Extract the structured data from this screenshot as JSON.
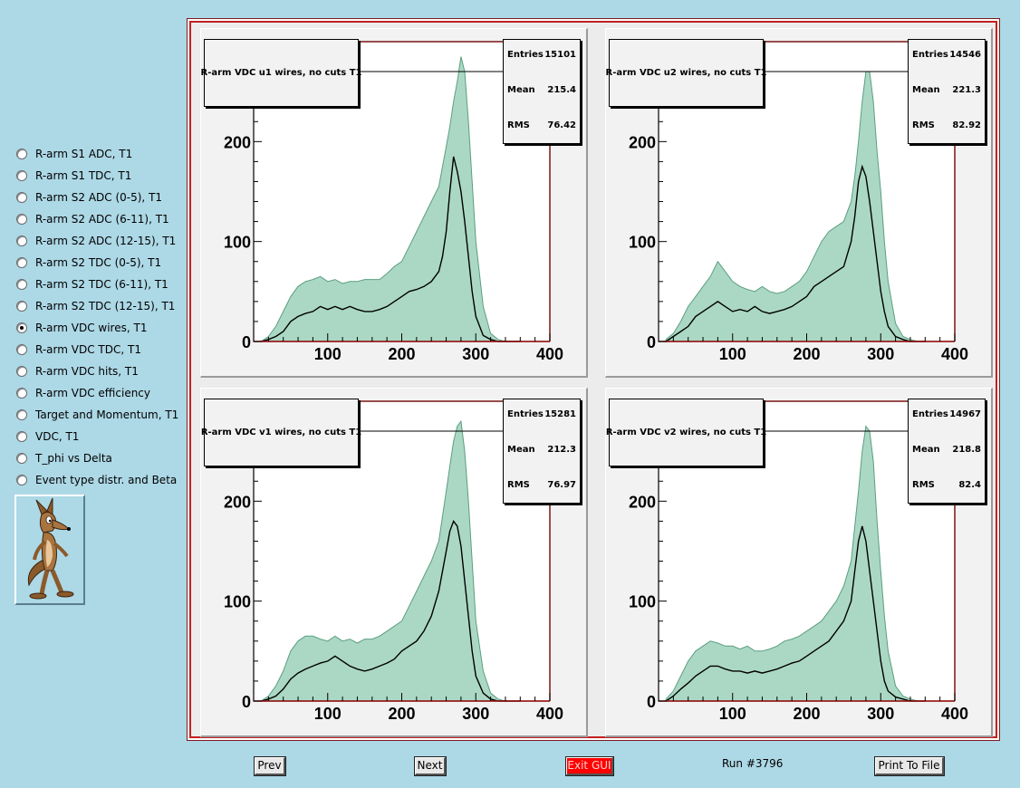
{
  "sidebar": {
    "options": [
      {
        "label": "R-arm S1 ADC, T1",
        "checked": false
      },
      {
        "label": "R-arm S1 TDC, T1",
        "checked": false
      },
      {
        "label": "R-arm S2 ADC (0-5), T1",
        "checked": false
      },
      {
        "label": "R-arm S2 ADC (6-11), T1",
        "checked": false
      },
      {
        "label": "R-arm S2 ADC (12-15), T1",
        "checked": false
      },
      {
        "label": "R-arm S2 TDC (0-5), T1",
        "checked": false
      },
      {
        "label": "R-arm S2 TDC (6-11), T1",
        "checked": false
      },
      {
        "label": "R-arm S2 TDC (12-15), T1",
        "checked": false
      },
      {
        "label": "R-arm VDC wires, T1",
        "checked": true
      },
      {
        "label": "R-arm VDC TDC, T1",
        "checked": false
      },
      {
        "label": "R-arm VDC hits, T1",
        "checked": false
      },
      {
        "label": "R-arm VDC efficiency",
        "checked": false
      },
      {
        "label": "Target and Momentum, T1",
        "checked": false
      },
      {
        "label": "VDC, T1",
        "checked": false
      },
      {
        "label": "T_phi vs Delta",
        "checked": false
      },
      {
        "label": "Event type distr. and Beta",
        "checked": false
      }
    ],
    "logo_icon": "cartoon-coyote-icon"
  },
  "stats_labels": {
    "entries": "Entries",
    "mean": "Mean",
    "rms": "RMS"
  },
  "colors": {
    "fill": "#8fcbb0",
    "outline": "#5a9e80",
    "line": "#000000",
    "frame": "#7a1515"
  },
  "chart_data": [
    {
      "type": "line",
      "title": "R-arm VDC u1 wires, no cuts T1",
      "stats": {
        "entries": "15101",
        "mean": "215.4",
        "rms": "76.42"
      },
      "xlim": [
        0,
        400
      ],
      "ylim": [
        0,
        300
      ],
      "xticks": [
        "100",
        "200",
        "300",
        "400"
      ],
      "yticks": [
        "0",
        "100",
        "200"
      ],
      "x": [
        10,
        20,
        30,
        40,
        50,
        60,
        70,
        80,
        90,
        100,
        110,
        120,
        130,
        140,
        150,
        160,
        170,
        180,
        190,
        200,
        210,
        220,
        230,
        240,
        250,
        255,
        260,
        265,
        270,
        275,
        280,
        285,
        290,
        295,
        300,
        310,
        320,
        330,
        340,
        350,
        360
      ],
      "series": [
        {
          "values": [
            0,
            5,
            15,
            30,
            45,
            55,
            60,
            62,
            65,
            60,
            62,
            58,
            60,
            60,
            62,
            62,
            62,
            68,
            75,
            80,
            95,
            110,
            125,
            140,
            155,
            175,
            195,
            215,
            240,
            260,
            285,
            270,
            220,
            160,
            100,
            35,
            8,
            2,
            0,
            0,
            0
          ]
        },
        {
          "values": [
            0,
            2,
            5,
            10,
            20,
            25,
            28,
            30,
            35,
            32,
            35,
            32,
            35,
            32,
            30,
            30,
            32,
            35,
            40,
            45,
            50,
            52,
            55,
            60,
            70,
            85,
            110,
            150,
            185,
            170,
            150,
            120,
            85,
            50,
            25,
            6,
            2,
            0,
            0,
            0,
            0
          ]
        }
      ]
    },
    {
      "type": "line",
      "title": "R-arm VDC u2 wires, no cuts T1",
      "stats": {
        "entries": "14546",
        "mean": "221.3",
        "rms": "82.92"
      },
      "xlim": [
        0,
        400
      ],
      "ylim": [
        0,
        300
      ],
      "xticks": [
        "100",
        "200",
        "300",
        "400"
      ],
      "yticks": [
        "0",
        "100",
        "200"
      ],
      "x": [
        10,
        20,
        30,
        40,
        50,
        60,
        70,
        80,
        90,
        100,
        110,
        120,
        130,
        140,
        150,
        160,
        170,
        180,
        190,
        200,
        210,
        220,
        230,
        240,
        250,
        260,
        265,
        270,
        275,
        280,
        285,
        290,
        295,
        300,
        305,
        310,
        320,
        330,
        340,
        350,
        360
      ],
      "series": [
        {
          "values": [
            2,
            8,
            20,
            35,
            45,
            55,
            65,
            80,
            70,
            60,
            55,
            52,
            50,
            55,
            50,
            48,
            50,
            55,
            60,
            70,
            85,
            100,
            110,
            115,
            120,
            140,
            165,
            200,
            240,
            270,
            270,
            240,
            190,
            150,
            100,
            60,
            18,
            5,
            2,
            0,
            0
          ]
        },
        {
          "values": [
            0,
            5,
            10,
            15,
            25,
            30,
            35,
            40,
            35,
            30,
            32,
            30,
            35,
            30,
            28,
            30,
            32,
            35,
            40,
            45,
            55,
            60,
            65,
            70,
            75,
            100,
            125,
            160,
            175,
            165,
            140,
            110,
            80,
            50,
            30,
            15,
            5,
            2,
            0,
            0,
            0
          ]
        }
      ]
    },
    {
      "type": "line",
      "title": "R-arm VDC v1 wires, no cuts T1",
      "stats": {
        "entries": "15281",
        "mean": "212.3",
        "rms": "76.97"
      },
      "xlim": [
        0,
        400
      ],
      "ylim": [
        0,
        300
      ],
      "xticks": [
        "100",
        "200",
        "300",
        "400"
      ],
      "yticks": [
        "0",
        "100",
        "200"
      ],
      "x": [
        10,
        20,
        30,
        40,
        50,
        60,
        70,
        80,
        90,
        100,
        110,
        120,
        130,
        140,
        150,
        160,
        170,
        180,
        190,
        200,
        210,
        220,
        230,
        240,
        250,
        255,
        260,
        265,
        270,
        275,
        280,
        285,
        290,
        295,
        300,
        310,
        320,
        330,
        340,
        350,
        360
      ],
      "series": [
        {
          "values": [
            0,
            5,
            15,
            30,
            50,
            60,
            65,
            65,
            62,
            60,
            65,
            60,
            62,
            58,
            62,
            62,
            65,
            70,
            75,
            80,
            95,
            110,
            125,
            140,
            160,
            185,
            210,
            235,
            260,
            275,
            280,
            250,
            200,
            140,
            80,
            30,
            8,
            2,
            0,
            0,
            0
          ]
        },
        {
          "values": [
            0,
            2,
            5,
            12,
            22,
            28,
            32,
            35,
            38,
            40,
            45,
            40,
            35,
            32,
            30,
            32,
            35,
            38,
            42,
            50,
            55,
            60,
            70,
            85,
            110,
            130,
            150,
            170,
            180,
            175,
            155,
            120,
            85,
            50,
            25,
            8,
            2,
            0,
            0,
            0,
            0
          ]
        }
      ]
    },
    {
      "type": "line",
      "title": "R-arm VDC v2 wires, no cuts T1",
      "stats": {
        "entries": "14967",
        "mean": "218.8",
        "rms": "82.4"
      },
      "xlim": [
        0,
        400
      ],
      "ylim": [
        0,
        300
      ],
      "xticks": [
        "100",
        "200",
        "300",
        "400"
      ],
      "yticks": [
        "0",
        "100",
        "200"
      ],
      "x": [
        10,
        20,
        30,
        40,
        50,
        60,
        70,
        80,
        90,
        100,
        110,
        120,
        130,
        140,
        150,
        160,
        170,
        180,
        190,
        200,
        210,
        220,
        230,
        240,
        250,
        260,
        265,
        270,
        275,
        280,
        285,
        290,
        295,
        300,
        305,
        310,
        320,
        330,
        340,
        350,
        360
      ],
      "series": [
        {
          "values": [
            2,
            10,
            25,
            40,
            50,
            55,
            60,
            58,
            55,
            55,
            52,
            55,
            50,
            50,
            52,
            55,
            60,
            62,
            65,
            70,
            75,
            80,
            90,
            100,
            115,
            140,
            175,
            210,
            250,
            275,
            270,
            240,
            180,
            130,
            85,
            50,
            15,
            5,
            2,
            0,
            0
          ]
        },
        {
          "values": [
            0,
            5,
            12,
            18,
            25,
            30,
            35,
            35,
            32,
            30,
            30,
            28,
            30,
            28,
            30,
            32,
            35,
            38,
            40,
            45,
            50,
            55,
            60,
            70,
            80,
            100,
            130,
            160,
            175,
            160,
            130,
            100,
            70,
            40,
            20,
            10,
            4,
            2,
            0,
            0,
            0
          ]
        }
      ]
    }
  ],
  "footer": {
    "prev_label": "Prev",
    "next_label": "Next",
    "exit_label": "Exit GUI",
    "run_label": "Run #3796",
    "print_label": "Print To File"
  }
}
